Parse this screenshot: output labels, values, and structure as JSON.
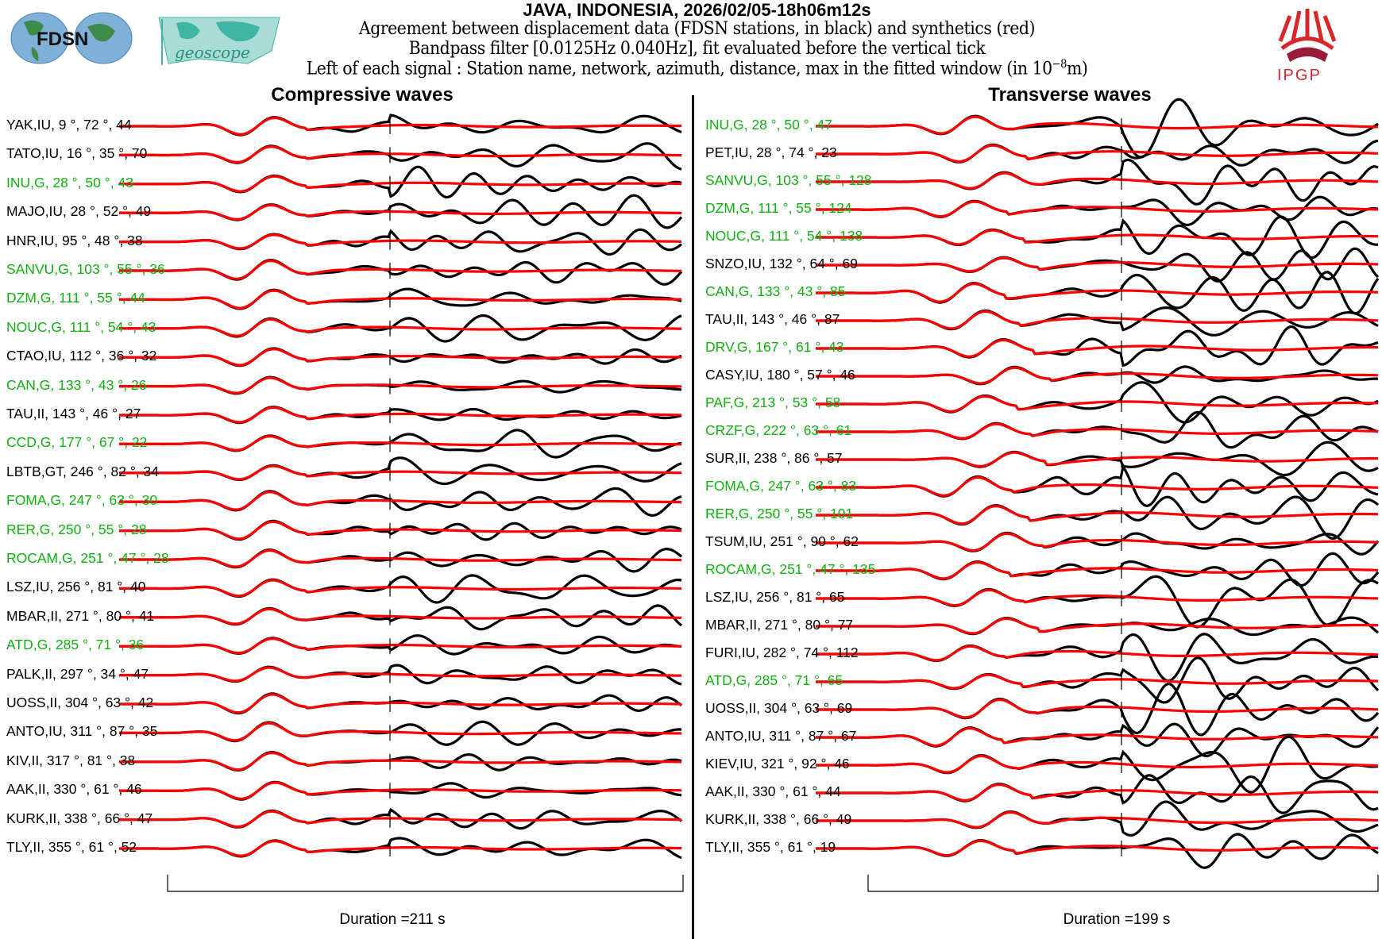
{
  "header": {
    "title": "JAVA, INDONESIA, 2026/02/05-18h06m12s",
    "line1": "Agreement between displacement data (FDSN stations, in black) and synthetics (red)",
    "line2": "Bandpass filter [0.0125Hz 0.040Hz], fit evaluated before the vertical tick",
    "line3_pre": "Left of each signal : Station name, network, azimuth, distance, max in the fitted window (in 10",
    "line3_exp": "−8",
    "line3_post": "m)"
  },
  "logos": {
    "fdsn": "FDSN",
    "geoscope": "geoscope",
    "ipgp": "IPGP"
  },
  "colors": {
    "data": "#000000",
    "synthetic": "#ff0000",
    "geoscope_station": "#0fb00f"
  },
  "compressive": {
    "title": "Compressive waves",
    "duration": "Duration =211 s",
    "stations": [
      {
        "label": "YAK,IU, 9 °, 72 °, 44",
        "g": false
      },
      {
        "label": "TATO,IU, 16 °, 35 °, 70",
        "g": false
      },
      {
        "label": "INU,G, 28 °, 50 °, 43",
        "g": true
      },
      {
        "label": "MAJO,IU, 28 °, 52 °, 49",
        "g": false
      },
      {
        "label": "HNR,IU, 95 °, 48 °, 38",
        "g": false
      },
      {
        "label": "SANVU,G, 103 °, 55 °, 36",
        "g": true
      },
      {
        "label": "DZM,G, 111 °, 55 °, 44",
        "g": true
      },
      {
        "label": "NOUC,G, 111 °, 54 °, 43",
        "g": true
      },
      {
        "label": "CTAO,IU, 112 °, 36 °, 32",
        "g": false
      },
      {
        "label": "CAN,G, 133 °, 43 °, 26",
        "g": true
      },
      {
        "label": "TAU,II, 143 °, 46 °, 27",
        "g": false
      },
      {
        "label": "CCD,G, 177 °, 67 °, 22",
        "g": true
      },
      {
        "label": "LBTB,GT, 246 °, 82 °, 34",
        "g": false
      },
      {
        "label": "FOMA,G, 247 °, 63 °, 30",
        "g": true
      },
      {
        "label": "RER,G, 250 °, 55 °, 28",
        "g": true
      },
      {
        "label": "ROCAM,G, 251 °, 47 °, 28",
        "g": true
      },
      {
        "label": "LSZ,IU, 256 °, 81 °, 40",
        "g": false
      },
      {
        "label": "MBAR,II, 271 °, 80 °, 41",
        "g": false
      },
      {
        "label": "ATD,G, 285 °, 71 °, 36",
        "g": true
      },
      {
        "label": "PALK,II, 297 °, 34 °, 47",
        "g": false
      },
      {
        "label": "UOSS,II, 304 °, 63 °, 42",
        "g": false
      },
      {
        "label": "ANTO,IU, 311 °, 87 °, 35",
        "g": false
      },
      {
        "label": "KIV,II, 317 °, 81 °, 38",
        "g": false
      },
      {
        "label": "AAK,II, 330 °, 61 °, 46",
        "g": false
      },
      {
        "label": "KURK,II, 338 °, 66 °, 47",
        "g": false
      },
      {
        "label": "TLY,II, 355 °, 61 °, 52",
        "g": false
      }
    ]
  },
  "transverse": {
    "title": "Transverse waves",
    "duration": "Duration =199 s",
    "stations": [
      {
        "label": "INU,G, 28 °, 50 °, 47",
        "g": true
      },
      {
        "label": "PET,IU, 28 °, 74 °, 23",
        "g": false
      },
      {
        "label": "SANVU,G, 103 °, 55 °, 128",
        "g": true
      },
      {
        "label": "DZM,G, 111 °, 55 °, 124",
        "g": true
      },
      {
        "label": "NOUC,G, 111 °, 54 °, 138",
        "g": true
      },
      {
        "label": "SNZO,IU, 132 °, 64 °, 69",
        "g": false
      },
      {
        "label": "CAN,G, 133 °, 43 °, 85",
        "g": true
      },
      {
        "label": "TAU,II, 143 °, 46 °, 87",
        "g": false
      },
      {
        "label": "DRV,G, 167 °, 61 °, 43",
        "g": true
      },
      {
        "label": "CASY,IU, 180 °, 57 °, 46",
        "g": false
      },
      {
        "label": "PAF,G, 213 °, 53 °, 58",
        "g": true
      },
      {
        "label": "CRZF,G, 222 °, 63 °, 61",
        "g": true
      },
      {
        "label": "SUR,II, 238 °, 86 °, 57",
        "g": false
      },
      {
        "label": "FOMA,G, 247 °, 63 °, 83",
        "g": true
      },
      {
        "label": "RER,G, 250 °, 55 °, 101",
        "g": true
      },
      {
        "label": "TSUM,IU, 251 °, 90 °, 62",
        "g": false
      },
      {
        "label": "ROCAM,G, 251 °, 47 °, 135",
        "g": true
      },
      {
        "label": "LSZ,IU, 256 °, 81 °, 65",
        "g": false
      },
      {
        "label": "MBAR,II, 271 °, 80 °, 77",
        "g": false
      },
      {
        "label": "FURI,IU, 282 °, 74 °, 112",
        "g": false
      },
      {
        "label": "ATD,G, 285 °, 71 °, 65",
        "g": true
      },
      {
        "label": "UOSS,II, 304 °, 63 °, 69",
        "g": false
      },
      {
        "label": "ANTO,IU, 311 °, 87 °, 67",
        "g": false
      },
      {
        "label": "KIEV,IU, 321 °, 92 °, 46",
        "g": false
      },
      {
        "label": "AAK,II, 330 °, 61 °, 44",
        "g": false
      },
      {
        "label": "KURK,II, 338 °, 66 °, 49",
        "g": false
      },
      {
        "label": "TLY,II, 355 °, 61 °, 19",
        "g": false
      }
    ]
  }
}
